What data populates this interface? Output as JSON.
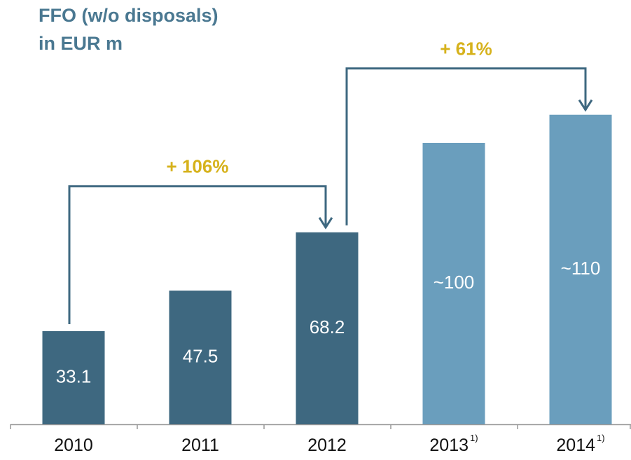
{
  "chart_data": {
    "type": "bar",
    "title": "FFO (w/o disposals)",
    "subtitle": "in EUR m",
    "categories": [
      "2010",
      "2011",
      "2012",
      "2013",
      "2014"
    ],
    "category_notes": [
      null,
      null,
      null,
      "1)",
      "1)"
    ],
    "values": [
      33.1,
      47.5,
      68.2,
      100,
      110
    ],
    "value_labels": [
      "33.1",
      "47.5",
      "68.2",
      "~100",
      "~110"
    ],
    "colors": [
      "#3e6880",
      "#3e6880",
      "#3e6880",
      "#6a9ebd",
      "#6a9ebd"
    ],
    "annotations": [
      {
        "text": "+ 106%",
        "from": "2010",
        "to": "2012"
      },
      {
        "text": "+ 61%",
        "from": "2012",
        "to": "2014"
      }
    ],
    "annotation_color": "#d6b21c",
    "arrow_color": "#3e6880"
  }
}
